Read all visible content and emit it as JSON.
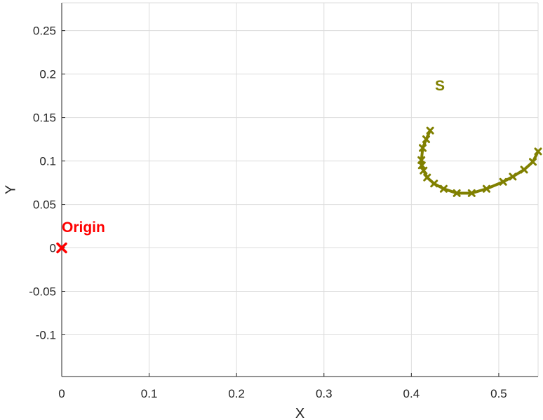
{
  "chart_data": {
    "type": "line",
    "title": "",
    "xlabel": "X",
    "ylabel": "Y",
    "xlim": [
      0,
      0.545
    ],
    "ylim": [
      -0.148,
      0.282
    ],
    "grid": true,
    "xticks": [
      0,
      0.1,
      0.2,
      0.3,
      0.4,
      0.5
    ],
    "xtick_labels": [
      "0",
      "0.1",
      "0.2",
      "0.3",
      "0.4",
      "0.5"
    ],
    "yticks": [
      -0.1,
      -0.05,
      0,
      0.05,
      0.1,
      0.15,
      0.2,
      0.25
    ],
    "ytick_labels": [
      "-0.1",
      "-0.05",
      "0",
      "0.05",
      "0.1",
      "0.15",
      "0.2",
      "0.25"
    ],
    "series": [
      {
        "color": "#808000",
        "marker": "x",
        "x": [
          0.4215,
          0.417,
          0.413,
          0.4115,
          0.412,
          0.414,
          0.418,
          0.426,
          0.437,
          0.452,
          0.469,
          0.486,
          0.505,
          0.516,
          0.529,
          0.539,
          0.545
        ],
        "y": [
          0.135,
          0.125,
          0.115,
          0.101,
          0.095,
          0.089,
          0.081,
          0.074,
          0.068,
          0.063,
          0.063,
          0.068,
          0.076,
          0.082,
          0.09,
          0.099,
          0.111
        ]
      }
    ],
    "points": [
      {
        "x": 0,
        "y": 0,
        "color": "#ff0000",
        "marker": "x"
      }
    ],
    "annotations": [
      {
        "text": "S",
        "x": 0.427,
        "y": 0.181,
        "color": "#808000"
      },
      {
        "text": "Origin",
        "x": 0.0,
        "y": 0.018,
        "color": "#ff0000"
      }
    ]
  }
}
